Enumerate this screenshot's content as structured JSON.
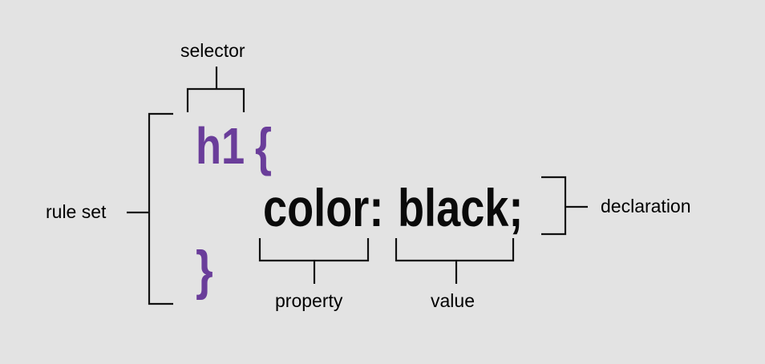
{
  "labels": {
    "selector": "selector",
    "rule_set": "rule set",
    "declaration": "declaration",
    "property": "property",
    "value": "value"
  },
  "code": {
    "selector": "h1",
    "open_brace": "{",
    "property": "color:",
    "value": "black;",
    "close_brace": "}"
  },
  "colors": {
    "background": "#e3e3e3",
    "syntax_purple": "#6a3d9a",
    "text": "#0a0a0a"
  }
}
